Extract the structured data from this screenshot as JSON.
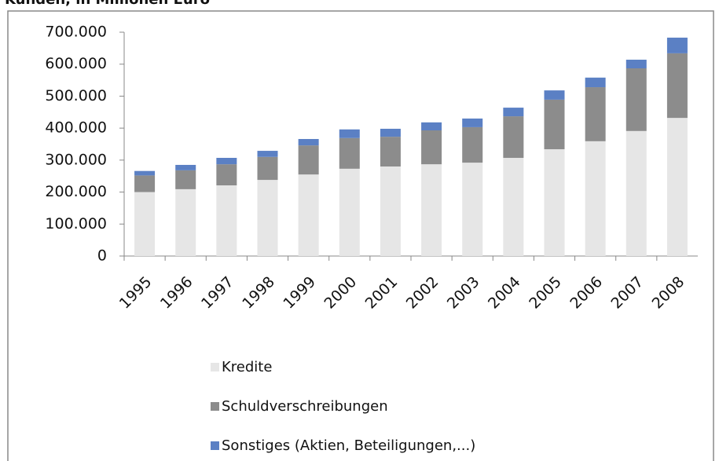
{
  "chart_data": {
    "type": "stacked_bar",
    "title": "Kunden, in Millionen Euro",
    "categories": [
      "1995",
      "1996",
      "1997",
      "1998",
      "1999",
      "2000",
      "2001",
      "2002",
      "2003",
      "2004",
      "2005",
      "2006",
      "2007",
      "2008"
    ],
    "series": [
      {
        "name": "Kredite",
        "color": "#e6e6e6",
        "values": [
          200000,
          209000,
          221000,
          238000,
          255000,
          273000,
          280000,
          287000,
          292000,
          307000,
          334000,
          359000,
          391000,
          432000
        ]
      },
      {
        "name": "Schuldverschreibungen",
        "color": "#8c8c8c",
        "values": [
          52000,
          59000,
          66000,
          72000,
          91000,
          96000,
          93000,
          106000,
          111000,
          130000,
          155000,
          169000,
          196000,
          202000
        ]
      },
      {
        "name": "Sonstiges (Aktien, Beteiligungen,...)",
        "color": "#5b80c4",
        "values": [
          14000,
          17000,
          20000,
          19000,
          20000,
          27000,
          25000,
          25000,
          27000,
          27000,
          29000,
          30000,
          27000,
          49000
        ]
      }
    ],
    "ylim": [
      0,
      700000
    ],
    "yticks": [
      0,
      {
        "value": 100000,
        "label": "100.000"
      },
      {
        "value": 200000,
        "label": "200.000"
      },
      {
        "value": 300000,
        "label": "300.000"
      },
      {
        "value": 400000,
        "label": "400.000"
      },
      {
        "value": 500000,
        "label": "500.000"
      },
      {
        "value": 600000,
        "label": "600.000"
      },
      {
        "value": 700000,
        "label": "700.000"
      }
    ],
    "legend": "bottom"
  }
}
